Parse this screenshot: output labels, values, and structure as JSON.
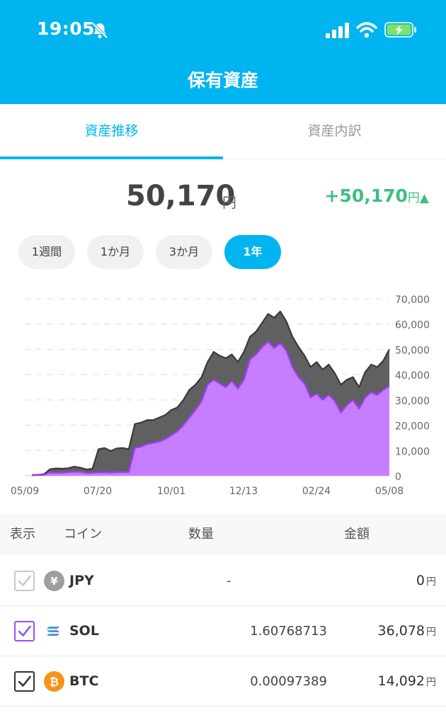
{
  "status_bar": {
    "time": "19:05"
  },
  "header": {
    "title": "保有資産"
  },
  "tabs": [
    {
      "label": "資産推移",
      "active": true
    },
    {
      "label": "資産内訳",
      "active": false
    }
  ],
  "summary": {
    "total_value": "50,170",
    "total_unit": "円",
    "change_value": "+50,170",
    "change_unit": "円",
    "change_arrow": "▲"
  },
  "ranges": [
    {
      "label": "1週間",
      "selected": false
    },
    {
      "label": "1か月",
      "selected": false
    },
    {
      "label": "3か月",
      "selected": false
    },
    {
      "label": "1年",
      "selected": true
    }
  ],
  "chart_data": {
    "type": "area",
    "x_ticks": [
      "05/09",
      "07/20",
      "10/01",
      "12/13",
      "02/24",
      "05/08"
    ],
    "y_ticks": [
      "70,000",
      "60,000",
      "50,000",
      "40,000",
      "30,000",
      "20,000",
      "10,000",
      "0"
    ],
    "ylim": [
      0,
      70000
    ],
    "grid": true,
    "series": [
      {
        "color": "#606060",
        "values": [
          300,
          400,
          600,
          2600,
          2900,
          2800,
          3000,
          3600,
          3200,
          2500,
          2800,
          10500,
          11000,
          9800,
          10800,
          11000,
          10500,
          20500,
          21000,
          22000,
          22000,
          23000,
          24000,
          26000,
          27000,
          30000,
          34000,
          36000,
          39000,
          45000,
          49000,
          47500,
          46500,
          48000,
          45000,
          49000,
          55000,
          57000,
          60500,
          64000,
          62500,
          65000,
          61000,
          55000,
          51000,
          47500,
          43000,
          45000,
          42000,
          44000,
          40500,
          36000,
          38000,
          39000,
          35000,
          41000,
          44000,
          43000,
          45500,
          50000
        ]
      },
      {
        "color": "#c77dff",
        "values": [
          200,
          300,
          400,
          1300,
          1200,
          1200,
          1400,
          1600,
          1500,
          1100,
          1200,
          1300,
          1400,
          1200,
          1400,
          1500,
          1400,
          11000,
          11500,
          12500,
          13000,
          13500,
          14500,
          16000,
          17500,
          20000,
          23000,
          26000,
          29500,
          36000,
          38000,
          36500,
          35000,
          37500,
          34500,
          38000,
          46000,
          48000,
          51000,
          53000,
          50500,
          52500,
          49500,
          43000,
          39000,
          36500,
          31000,
          32500,
          30000,
          32000,
          29500,
          25000,
          28000,
          30000,
          26500,
          31000,
          33000,
          32000,
          34000,
          35500
        ]
      }
    ]
  },
  "table": {
    "headers": {
      "show": "表示",
      "coin": "コイン",
      "quantity": "数量",
      "amount": "金額"
    },
    "rows": [
      {
        "coin": "JPY",
        "quantity": "-",
        "amount": "0",
        "unit": "円",
        "checked": true,
        "check_color": "#c8c8c8",
        "icon": "yen-coin-icon",
        "icon_color": "#9e9e9e"
      },
      {
        "coin": "SOL",
        "quantity": "1.60768713",
        "amount": "36,078",
        "unit": "円",
        "checked": true,
        "check_color": "#9b4dff",
        "icon": "sol-coin-icon",
        "icon_color": "#6f4de6"
      },
      {
        "coin": "BTC",
        "quantity": "0.00097389",
        "amount": "14,092",
        "unit": "円",
        "checked": true,
        "check_color": "#333333",
        "icon": "btc-coin-icon",
        "icon_color": "#f7931a"
      }
    ]
  }
}
